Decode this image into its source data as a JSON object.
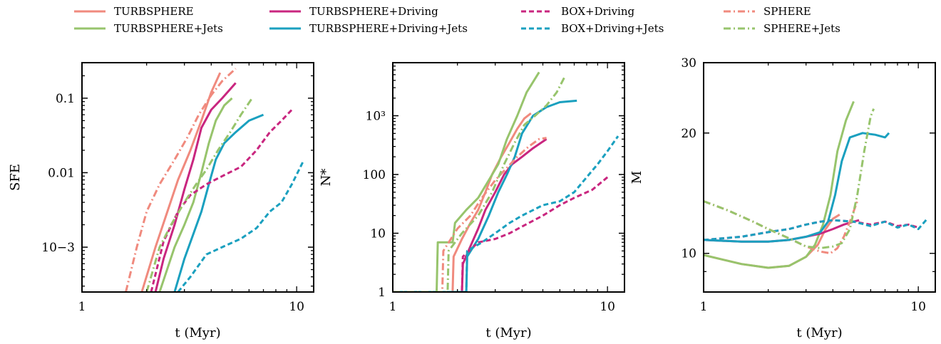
{
  "colors": {
    "salmon": "#F08A7E",
    "green": "#97C46C",
    "magenta": "#C9267F",
    "teal": "#1AA0BF"
  },
  "legend": [
    {
      "label": "TURBSPHERE",
      "color": "#F08A7E",
      "style": "solid"
    },
    {
      "label": "TURBSPHERE+Jets",
      "color": "#97C46C",
      "style": "solid"
    },
    {
      "label": "TURBSPHERE+Driving",
      "color": "#C9267F",
      "style": "solid"
    },
    {
      "label": "TURBSPHERE+Driving+Jets",
      "color": "#1AA0BF",
      "style": "solid"
    },
    {
      "label": "BOX+Driving",
      "color": "#C9267F",
      "style": "dashed"
    },
    {
      "label": "BOX+Driving+Jets",
      "color": "#1AA0BF",
      "style": "dashed"
    },
    {
      "label": "SPHERE",
      "color": "#F08A7E",
      "style": "dashdot"
    },
    {
      "label": "SPHERE+Jets",
      "color": "#97C46C",
      "style": "dashdot"
    }
  ],
  "chart_data": [
    {
      "type": "line",
      "xscale": "log",
      "yscale": "log",
      "xlabel": "t (Myr)",
      "ylabel": "SFE",
      "xlim": [
        1,
        12
      ],
      "ylim": [
        0.00025,
        0.3
      ],
      "xticks": [
        1,
        10
      ],
      "xtick_labels": [
        "1",
        "10"
      ],
      "yticks": [
        0.001,
        0.01,
        0.1
      ],
      "ytick_labels": [
        "10−3",
        "0.01",
        "0.1"
      ],
      "series": [
        {
          "name": "TURBSPHERE",
          "color": "#F08A7E",
          "style": "solid",
          "x": [
            1.9,
            2.2,
            2.5,
            2.8,
            3.2,
            3.6,
            4.0,
            4.4
          ],
          "y": [
            0.00025,
            0.001,
            0.003,
            0.008,
            0.02,
            0.05,
            0.12,
            0.22
          ]
        },
        {
          "name": "TURBSPHERE+Jets",
          "color": "#97C46C",
          "style": "solid",
          "x": [
            2.3,
            2.7,
            3.0,
            3.3,
            3.6,
            3.9,
            4.2,
            4.6,
            5.0
          ],
          "y": [
            0.00025,
            0.001,
            0.002,
            0.004,
            0.01,
            0.025,
            0.05,
            0.08,
            0.1
          ]
        },
        {
          "name": "TURBSPHERE+Driving",
          "color": "#C9267F",
          "style": "solid",
          "x": [
            2.2,
            2.4,
            2.7,
            3.0,
            3.3,
            3.6,
            4.0,
            4.5,
            5.2
          ],
          "y": [
            0.00025,
            0.0007,
            0.002,
            0.006,
            0.015,
            0.04,
            0.07,
            0.1,
            0.16
          ]
        },
        {
          "name": "TURBSPHERE+Driving+Jets",
          "color": "#1AA0BF",
          "style": "solid",
          "x": [
            2.7,
            3.0,
            3.3,
            3.6,
            3.9,
            4.2,
            4.6,
            5.2,
            6.0,
            7.0
          ],
          "y": [
            0.00025,
            0.0007,
            0.0015,
            0.003,
            0.007,
            0.015,
            0.025,
            0.035,
            0.05,
            0.06
          ]
        },
        {
          "name": "BOX+Driving",
          "color": "#C9267F",
          "style": "dashed",
          "x": [
            2.1,
            2.4,
            2.8,
            3.2,
            3.8,
            4.5,
            5.5,
            6.5,
            7.5,
            8.5,
            9.5
          ],
          "y": [
            0.00025,
            0.0012,
            0.003,
            0.005,
            0.007,
            0.009,
            0.012,
            0.02,
            0.035,
            0.05,
            0.07
          ]
        },
        {
          "name": "BOX+Driving+Jets",
          "color": "#1AA0BF",
          "style": "dashed",
          "x": [
            2.8,
            3.2,
            3.8,
            4.5,
            5.5,
            6.5,
            7.5,
            8.5,
            9.5,
            10.7
          ],
          "y": [
            0.00025,
            0.0004,
            0.0008,
            0.001,
            0.0013,
            0.0018,
            0.003,
            0.004,
            0.007,
            0.014
          ]
        },
        {
          "name": "SPHERE",
          "color": "#F08A7E",
          "style": "dashdot",
          "x": [
            1.6,
            1.8,
            2.0,
            2.3,
            2.7,
            3.1,
            3.5,
            4.0,
            4.5,
            5.2
          ],
          "y": [
            0.00025,
            0.001,
            0.003,
            0.007,
            0.015,
            0.03,
            0.06,
            0.11,
            0.17,
            0.25
          ]
        },
        {
          "name": "SPHERE+Jets",
          "color": "#97C46C",
          "style": "dashdot",
          "x": [
            2.0,
            2.3,
            2.6,
            3.0,
            3.4,
            3.8,
            4.3,
            4.9,
            5.5,
            6.2
          ],
          "y": [
            0.00025,
            0.001,
            0.002,
            0.004,
            0.007,
            0.011,
            0.02,
            0.035,
            0.06,
            0.1
          ]
        }
      ]
    },
    {
      "type": "line",
      "xscale": "log",
      "yscale": "log",
      "xlabel": "t (Myr)",
      "ylabel": "N*",
      "xlim": [
        1,
        12
      ],
      "ylim": [
        1,
        8000
      ],
      "xticks": [
        1,
        10
      ],
      "xtick_labels": [
        "1",
        "10"
      ],
      "yticks": [
        1,
        10,
        100,
        1000
      ],
      "ytick_labels": [
        "1",
        "10",
        "100",
        "10³"
      ],
      "series": [
        {
          "name": "TURBSPHERE",
          "color": "#F08A7E",
          "style": "solid",
          "x": [
            1.0,
            1.9,
            1.92,
            2.1,
            2.3,
            2.5,
            2.7,
            2.9,
            3.2,
            3.5,
            3.8,
            4.1,
            4.4
          ],
          "y": [
            1,
            1,
            4,
            8,
            15,
            25,
            50,
            100,
            200,
            350,
            600,
            900,
            1100
          ]
        },
        {
          "name": "TURBSPHERE+Jets",
          "color": "#97C46C",
          "style": "solid",
          "x": [
            1.0,
            1.6,
            1.62,
            1.9,
            1.95,
            2.2,
            2.5,
            2.8,
            3.1,
            3.4,
            3.8,
            4.2,
            4.8
          ],
          "y": [
            1,
            1,
            7,
            7,
            15,
            25,
            40,
            80,
            150,
            400,
            1000,
            2500,
            5500
          ]
        },
        {
          "name": "TURBSPHERE+Driving",
          "color": "#C9267F",
          "style": "solid",
          "x": [
            1.0,
            2.1,
            2.12,
            2.3,
            2.5,
            2.7,
            3.0,
            3.3,
            3.6,
            4.0,
            4.5,
            5.2
          ],
          "y": [
            1,
            1,
            3,
            6,
            12,
            25,
            50,
            100,
            150,
            200,
            280,
            400
          ]
        },
        {
          "name": "TURBSPHERE+Driving+Jets",
          "color": "#1AA0BF",
          "style": "solid",
          "x": [
            1.0,
            2.2,
            2.22,
            2.5,
            2.8,
            3.1,
            3.4,
            3.7,
            4.0,
            4.5,
            5.2,
            6.0,
            7.2
          ],
          "y": [
            1,
            1,
            4,
            8,
            20,
            50,
            100,
            200,
            500,
            1000,
            1400,
            1700,
            1800
          ]
        },
        {
          "name": "BOX+Driving",
          "color": "#C9267F",
          "style": "dashed",
          "x": [
            1.0,
            2.1,
            2.12,
            2.5,
            3.0,
            3.5,
            4.0,
            5.0,
            6.0,
            7.0,
            8.5,
            10.0
          ],
          "y": [
            1,
            1,
            4,
            7,
            8,
            10,
            13,
            20,
            30,
            40,
            55,
            90
          ]
        },
        {
          "name": "BOX+Driving+Jets",
          "color": "#1AA0BF",
          "style": "dashed",
          "x": [
            1.0,
            2.2,
            2.22,
            2.6,
            3.0,
            3.5,
            4.0,
            5.0,
            6.0,
            7.0,
            8.0,
            9.0,
            10.0,
            11.2
          ],
          "y": [
            1,
            1,
            5,
            7,
            10,
            15,
            20,
            30,
            35,
            50,
            90,
            150,
            250,
            450
          ]
        },
        {
          "name": "SPHERE",
          "color": "#F08A7E",
          "style": "dashdot",
          "x": [
            1.0,
            1.7,
            1.72,
            2.0,
            2.3,
            2.6,
            3.0,
            3.4,
            3.8,
            4.3,
            4.8,
            5.2
          ],
          "y": [
            1,
            1,
            5,
            12,
            20,
            40,
            80,
            130,
            200,
            300,
            400,
            420
          ]
        },
        {
          "name": "SPHERE+Jets",
          "color": "#97C46C",
          "style": "dashdot",
          "x": [
            1.0,
            1.8,
            1.82,
            2.1,
            2.5,
            2.9,
            3.3,
            3.7,
            4.1,
            4.6,
            5.2,
            5.8,
            6.3
          ],
          "y": [
            1,
            1,
            5,
            10,
            20,
            50,
            150,
            350,
            700,
            1000,
            1500,
            2500,
            4500
          ]
        }
      ]
    },
    {
      "type": "line",
      "xscale": "log",
      "yscale": "log",
      "xlabel": "t (Myr)",
      "ylabel": "M",
      "xlim": [
        1,
        12
      ],
      "ylim": [
        8,
        30
      ],
      "xticks": [
        1,
        10
      ],
      "xtick_labels": [
        "1",
        "10"
      ],
      "yticks": [
        10,
        20,
        30
      ],
      "ytick_labels": [
        "10",
        "20",
        "30"
      ],
      "series": [
        {
          "name": "TURBSPHERE",
          "color": "#F08A7E",
          "style": "solid",
          "x": [
            1.0,
            1.5,
            2.0,
            2.5,
            3.0,
            3.4,
            3.7,
            4.0,
            4.3
          ],
          "y": [
            9.9,
            9.4,
            9.2,
            9.3,
            9.8,
            10.5,
            11.5,
            12.2,
            12.5
          ]
        },
        {
          "name": "TURBSPHERE+Jets",
          "color": "#97C46C",
          "style": "solid",
          "x": [
            1.0,
            1.5,
            2.0,
            2.5,
            3.0,
            3.3,
            3.6,
            3.9,
            4.2,
            4.6,
            5.0
          ],
          "y": [
            9.9,
            9.4,
            9.2,
            9.3,
            9.8,
            10.5,
            11.8,
            14.0,
            18.0,
            21.5,
            24.0
          ]
        },
        {
          "name": "TURBSPHERE+Driving",
          "color": "#C9267F",
          "style": "solid",
          "x": [
            1.0,
            1.5,
            2.0,
            2.5,
            3.0,
            3.5,
            4.0,
            4.5,
            5.0,
            5.3
          ],
          "y": [
            10.8,
            10.7,
            10.7,
            10.8,
            11.0,
            11.2,
            11.5,
            11.8,
            12.0,
            12.1
          ]
        },
        {
          "name": "TURBSPHERE+Driving+Jets",
          "color": "#1AA0BF",
          "style": "solid",
          "x": [
            1.0,
            1.5,
            2.0,
            2.5,
            3.0,
            3.5,
            3.8,
            4.1,
            4.4,
            4.8,
            5.5,
            6.3,
            7.0,
            7.3
          ],
          "y": [
            10.8,
            10.7,
            10.7,
            10.8,
            11.0,
            11.3,
            12.0,
            14.0,
            17.0,
            19.5,
            20.0,
            19.8,
            19.5,
            20.0
          ]
        },
        {
          "name": "BOX+Driving",
          "color": "#C9267F",
          "style": "dashed",
          "x": [
            1.0,
            1.5,
            2.0,
            2.5,
            3.0,
            3.5,
            4.0,
            5.0,
            6.0,
            7.0,
            8.0,
            9.0,
            10.0
          ],
          "y": [
            10.8,
            11.0,
            11.3,
            11.5,
            11.8,
            12.0,
            12.1,
            12.0,
            11.8,
            12.0,
            11.7,
            11.8,
            11.6
          ]
        },
        {
          "name": "BOX+Driving+Jets",
          "color": "#1AA0BF",
          "style": "dashed",
          "x": [
            1.0,
            1.5,
            2.0,
            2.5,
            3.0,
            3.5,
            4.0,
            5.0,
            6.0,
            7.0,
            8.0,
            9.0,
            10.0,
            11.0
          ],
          "y": [
            10.8,
            11.0,
            11.3,
            11.5,
            11.8,
            12.0,
            12.1,
            12.0,
            11.7,
            12.0,
            11.6,
            11.8,
            11.5,
            12.2
          ]
        },
        {
          "name": "SPHERE",
          "color": "#F08A7E",
          "style": "dashdot",
          "x": [
            1.0,
            1.3,
            1.7,
            2.0,
            2.5,
            3.0,
            3.5,
            3.9,
            4.2,
            4.5,
            4.8,
            5.2
          ],
          "y": [
            13.5,
            12.8,
            12.0,
            11.5,
            10.9,
            10.4,
            10.1,
            10.0,
            10.3,
            11.0,
            12.0,
            13.5
          ]
        },
        {
          "name": "SPHERE+Jets",
          "color": "#97C46C",
          "style": "dashdot",
          "x": [
            1.0,
            1.3,
            1.7,
            2.0,
            2.5,
            3.0,
            3.5,
            4.0,
            4.4,
            4.8,
            5.2,
            5.6,
            6.0,
            6.2
          ],
          "y": [
            13.5,
            12.8,
            12.0,
            11.5,
            10.9,
            10.4,
            10.3,
            10.4,
            10.6,
            11.5,
            14.0,
            18.0,
            22.0,
            23.0
          ]
        }
      ]
    }
  ]
}
